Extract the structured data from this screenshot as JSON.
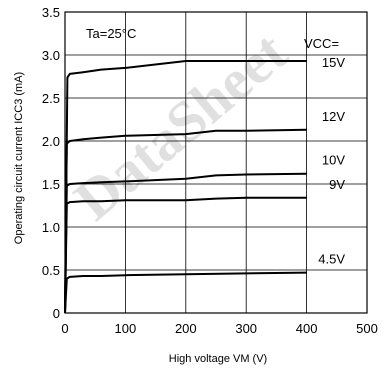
{
  "chart_data": {
    "type": "line",
    "ylabel": "Operating circuit current ICC3 (mA)",
    "xlabel": "High voltage VM (V)",
    "xlim": [
      0,
      500
    ],
    "ylim": [
      0,
      3.5
    ],
    "x_ticks": [
      "0",
      "100",
      "200",
      "300",
      "400",
      "500"
    ],
    "y_ticks": [
      "0",
      "0.5",
      "1.0",
      "1.5",
      "2.0",
      "2.5",
      "3.0",
      "3.5"
    ],
    "grid": true,
    "annotation": "Ta=25°C",
    "legend_title": "VCC=",
    "series": [
      {
        "name": "15V",
        "x": [
          0,
          4,
          8,
          30,
          60,
          100,
          200,
          300,
          400
        ],
        "y": [
          0,
          2.74,
          2.78,
          2.8,
          2.83,
          2.85,
          2.93,
          2.93,
          2.93
        ]
      },
      {
        "name": "12V",
        "x": [
          0,
          3,
          8,
          30,
          60,
          100,
          200,
          250,
          300,
          400
        ],
        "y": [
          0,
          1.97,
          2.0,
          2.02,
          2.04,
          2.06,
          2.08,
          2.12,
          2.12,
          2.13
        ]
      },
      {
        "name": "10V",
        "x": [
          0,
          3,
          8,
          30,
          60,
          100,
          200,
          250,
          300,
          400
        ],
        "y": [
          0,
          1.48,
          1.5,
          1.51,
          1.52,
          1.53,
          1.56,
          1.6,
          1.61,
          1.62
        ]
      },
      {
        "name": "9V",
        "x": [
          0,
          3,
          8,
          30,
          60,
          100,
          200,
          250,
          300,
          400
        ],
        "y": [
          0,
          1.27,
          1.29,
          1.3,
          1.3,
          1.31,
          1.31,
          1.33,
          1.34,
          1.34
        ]
      },
      {
        "name": "4.5V",
        "x": [
          0,
          3,
          8,
          30,
          60,
          100,
          200,
          300,
          400
        ],
        "y": [
          0,
          0.4,
          0.42,
          0.43,
          0.43,
          0.44,
          0.45,
          0.46,
          0.47
        ]
      }
    ]
  }
}
